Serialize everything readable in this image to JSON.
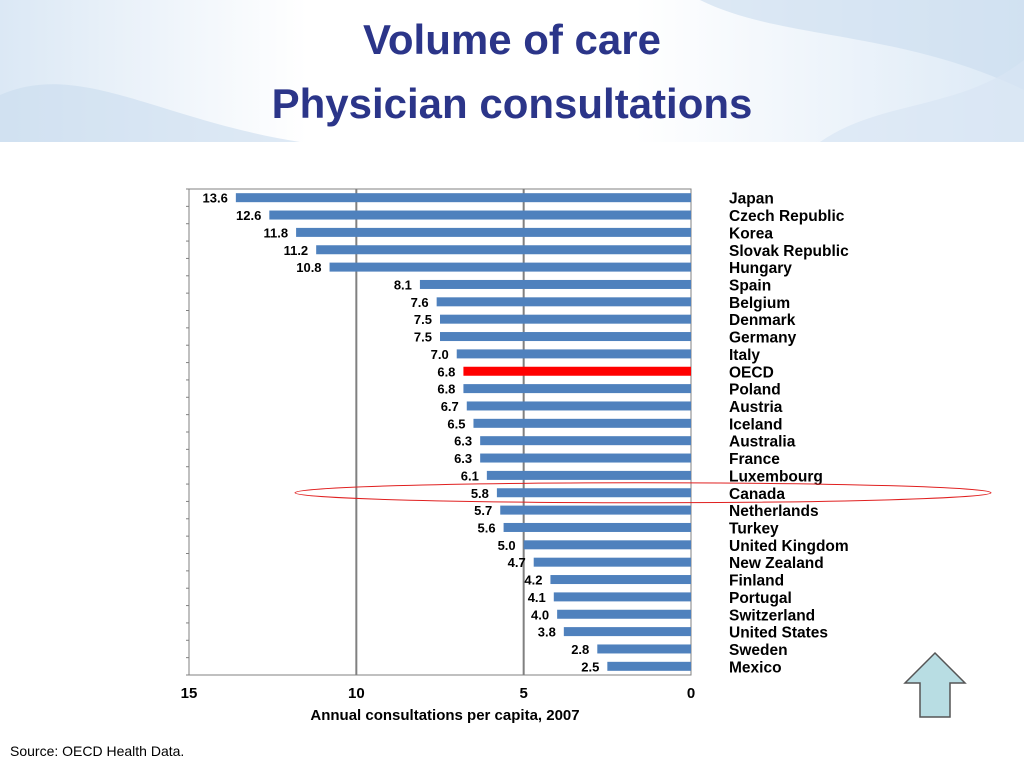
{
  "slide": {
    "title_line1": "Volume of care",
    "title_line2": "Physician consultations",
    "source": "Source: OECD Health Data."
  },
  "colors": {
    "title": "#2b3589",
    "bar": "#4f81bd",
    "highlight_bar": "#ff0000",
    "ellipse": "#e02020",
    "arrow_fill": "#b8dde3"
  },
  "nav": {
    "icon": "up-arrow-icon"
  },
  "chart_data": {
    "type": "bar",
    "orientation": "horizontal",
    "xlabel": "Annual consultations per capita, 2007",
    "ylabel": "",
    "xlim": [
      0,
      15
    ],
    "x_reversed": true,
    "xticks": [
      "15",
      "10",
      "5",
      "0"
    ],
    "grid": true,
    "legend": "none",
    "highlight": [
      "OECD"
    ],
    "circled": [
      "Canada"
    ],
    "categories": [
      "Japan",
      "Czech Republic",
      "Korea",
      "Slovak Republic",
      "Hungary",
      "Spain",
      "Belgium",
      "Denmark",
      "Germany",
      "Italy",
      "OECD",
      "Poland",
      "Austria",
      "Iceland",
      "Australia",
      "France",
      "Luxembourg",
      "Canada",
      "Netherlands",
      "Turkey",
      "United Kingdom",
      "New Zealand",
      "Finland",
      "Portugal",
      "Switzerland",
      "United States",
      "Sweden",
      "Mexico"
    ],
    "values": [
      13.6,
      12.6,
      11.8,
      11.2,
      10.8,
      8.1,
      7.6,
      7.5,
      7.5,
      7.0,
      6.8,
      6.8,
      6.7,
      6.5,
      6.3,
      6.3,
      6.1,
      5.8,
      5.7,
      5.6,
      5.0,
      4.7,
      4.2,
      4.1,
      4.0,
      3.8,
      2.8,
      2.5
    ],
    "value_labels": [
      "13.6",
      "12.6",
      "11.8",
      "11.2",
      "10.8",
      "8.1",
      "7.6",
      "7.5",
      "7.5",
      "7.0",
      "6.8",
      "6.8",
      "6.7",
      "6.5",
      "6.3",
      "6.3",
      "6.1",
      "5.8",
      "5.7",
      "5.6",
      "5.0",
      "4.7",
      "4.2",
      "4.1",
      "4.0",
      "3.8",
      "2.8",
      "2.5"
    ]
  }
}
